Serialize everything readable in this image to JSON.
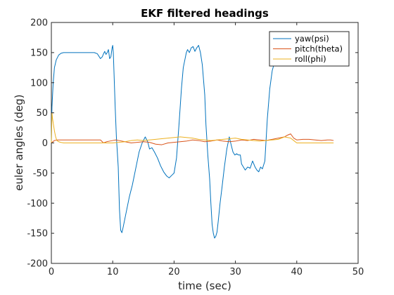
{
  "chart_data": {
    "type": "line",
    "title": "EKF filtered headings",
    "xlabel": "time (sec)",
    "ylabel": "euler angles (deg)",
    "xlim": [
      0,
      50
    ],
    "ylim": [
      -200,
      200
    ],
    "xticks": [
      0,
      10,
      20,
      30,
      40,
      50
    ],
    "yticks": [
      -200,
      -150,
      -100,
      -50,
      0,
      50,
      100,
      150,
      200
    ],
    "grid": false,
    "legend_position": "top-right",
    "series": [
      {
        "name": "yaw(psi)",
        "color": "#0072BD",
        "x": [
          0.0,
          0.1,
          0.3,
          0.5,
          0.8,
          1.2,
          1.6,
          2,
          3,
          4,
          5,
          6,
          7,
          7.5,
          8,
          8.3,
          8.5,
          8.7,
          8.9,
          9.1,
          9.3,
          9.5,
          9.7,
          9.9,
          10.0,
          10.1,
          10.2,
          10.4,
          10.6,
          10.9,
          11.1,
          11.3,
          11.5,
          11.7,
          12.0,
          12.3,
          12.7,
          13.2,
          13.8,
          14.3,
          14.8,
          15.3,
          15.7,
          16.0,
          16.4,
          16.8,
          17.3,
          17.8,
          18.3,
          18.8,
          19.2,
          19.6,
          20.0,
          20.4,
          20.8,
          21.2,
          21.5,
          21.8,
          22.0,
          22.2,
          22.5,
          22.8,
          23.1,
          23.4,
          23.7,
          24.0,
          24.3,
          24.6,
          25.0,
          25.2,
          25.5,
          25.8,
          26.0,
          26.2,
          26.4,
          26.6,
          26.8,
          27.0,
          27.2,
          27.5,
          27.8,
          28.2,
          28.6,
          29.0,
          29.3,
          29.6,
          29.9,
          30.2,
          30.5,
          30.8,
          31.0,
          31.3,
          31.6,
          32.0,
          32.4,
          32.8,
          33.2,
          33.5,
          33.8,
          34.1,
          34.4,
          34.8,
          35.2,
          35.6,
          36.0,
          36.4,
          36.8,
          37.2,
          37.6,
          38.0,
          38.5,
          39.0,
          39.5,
          40.0,
          41.0,
          42.0,
          43.0,
          44.0,
          45.0,
          46.0
        ],
        "y": [
          0,
          60,
          100,
          125,
          138,
          146,
          149,
          150,
          150,
          150,
          150,
          150,
          150,
          148,
          140,
          143,
          148,
          152,
          147,
          150,
          155,
          140,
          143,
          158,
          162,
          150,
          120,
          60,
          10,
          -40,
          -110,
          -145,
          -149,
          -140,
          -125,
          -110,
          -90,
          -70,
          -40,
          -15,
          0,
          10,
          2,
          -10,
          -8,
          -15,
          -25,
          -38,
          -48,
          -55,
          -58,
          -54,
          -50,
          -25,
          30,
          90,
          125,
          140,
          150,
          155,
          150,
          158,
          160,
          152,
          158,
          162,
          150,
          130,
          80,
          30,
          -20,
          -60,
          -100,
          -135,
          -150,
          -158,
          -155,
          -148,
          -130,
          -100,
          -75,
          -40,
          -10,
          10,
          -3,
          -15,
          -20,
          -18,
          -20,
          -20,
          -35,
          -40,
          -45,
          -40,
          -42,
          -30,
          -40,
          -45,
          -48,
          -40,
          -43,
          -30,
          40,
          90,
          120,
          135,
          145,
          150,
          148,
          150,
          152,
          150,
          150,
          150,
          150,
          150,
          150,
          150,
          150,
          150
        ]
      },
      {
        "name": "pitch(theta)",
        "color": "#D95319",
        "x": [
          0.0,
          0.5,
          1,
          2,
          3,
          4,
          5,
          6,
          7,
          8,
          8.5,
          9,
          9.5,
          10,
          10.5,
          11,
          12,
          13,
          14,
          15,
          16,
          17,
          18,
          19,
          20,
          21,
          22,
          23,
          24,
          25,
          26,
          27,
          28,
          29,
          30,
          31,
          32,
          33,
          34,
          35,
          36,
          37,
          38,
          38.5,
          39,
          39.5,
          40,
          41,
          42,
          43,
          44,
          45,
          45.5,
          46
        ],
        "y": [
          0,
          4,
          5,
          5,
          5,
          5,
          5,
          5,
          5,
          5,
          0,
          2,
          3,
          4,
          5,
          4,
          2,
          0,
          1,
          2,
          1,
          -2,
          -3,
          0,
          1,
          2,
          3,
          5,
          4,
          2,
          3,
          5,
          3,
          2,
          3,
          5,
          4,
          6,
          5,
          4,
          6,
          8,
          10,
          13,
          15,
          8,
          5,
          6,
          6,
          5,
          4,
          5,
          5,
          4
        ]
      },
      {
        "name": "roll(phi)",
        "color": "#EDB120",
        "x": [
          0.0,
          0.1,
          0.2,
          0.35,
          0.5,
          0.7,
          0.9,
          1.2,
          1.5,
          2,
          4,
          6,
          8,
          10,
          11,
          12,
          13,
          14,
          15,
          16,
          17,
          18,
          19,
          20,
          21,
          22,
          23,
          24,
          25,
          26,
          27,
          28,
          29,
          30,
          31,
          32,
          33,
          34,
          35,
          36,
          37,
          37.5,
          38,
          38.5,
          39,
          39.5,
          40,
          41,
          42,
          44,
          46
        ],
        "y": [
          0,
          50,
          40,
          30,
          20,
          10,
          4,
          2,
          1,
          0,
          0,
          0,
          0,
          0,
          1,
          2,
          4,
          5,
          4,
          5,
          6,
          7,
          8,
          9,
          10,
          9,
          8,
          6,
          5,
          4,
          5,
          6,
          7,
          8,
          6,
          5,
          4,
          3,
          4,
          5,
          6,
          8,
          10,
          9,
          8,
          4,
          0,
          0,
          0,
          0,
          0
        ]
      }
    ]
  }
}
